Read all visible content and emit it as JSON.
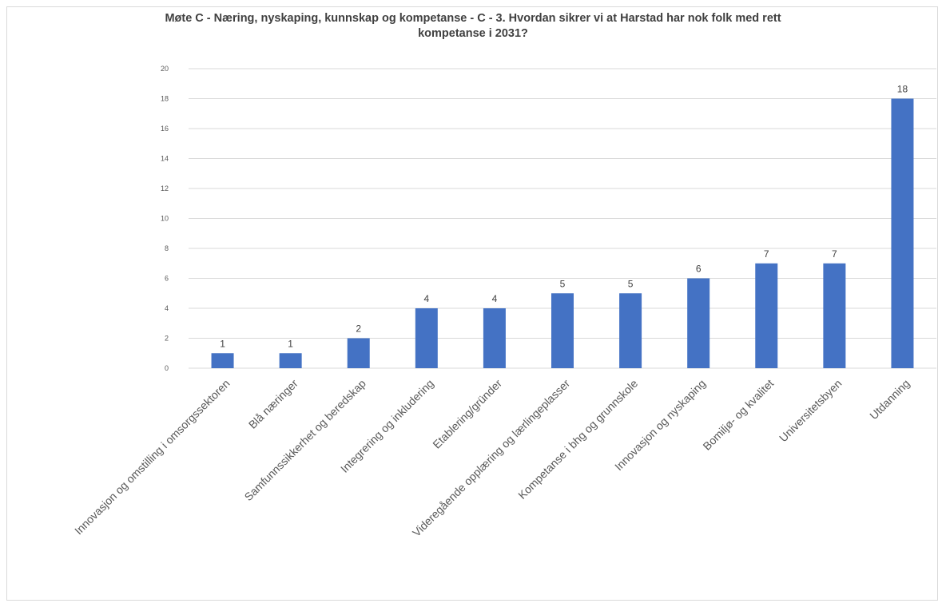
{
  "chart_data": {
    "type": "bar",
    "title_lines": [
      "Møte C - Næring, nyskaping, kunnskap og kompetanse - C - 3. Hvordan sikrer vi at Harstad har nok folk med rett",
      "kompetanse i 2031?"
    ],
    "categories": [
      "Innovasjon og omstilling i omsorgssektoren",
      "Blå næringer",
      "Samfunnssikkerhet og beredskap",
      "Integrering og inkludering",
      "Etablering/gründer",
      "Videregående opplæring og lærlingeplasser",
      "Kompetanse i bhg og grunnskole",
      "Innovasjon og nyskaping",
      "Bomiljø- og kvalitet",
      "Universitetsbyen",
      "Utdanning"
    ],
    "values": [
      1,
      1,
      2,
      4,
      4,
      5,
      5,
      6,
      7,
      7,
      18
    ],
    "ylim": [
      0,
      20
    ],
    "yticks": [
      0,
      2,
      4,
      6,
      8,
      10,
      12,
      14,
      16,
      18,
      20
    ],
    "xlabel": "",
    "ylabel": "",
    "grid": true,
    "legend": "none",
    "bar_color": "#4472c4",
    "gridline_color": "#d9d9d9"
  }
}
